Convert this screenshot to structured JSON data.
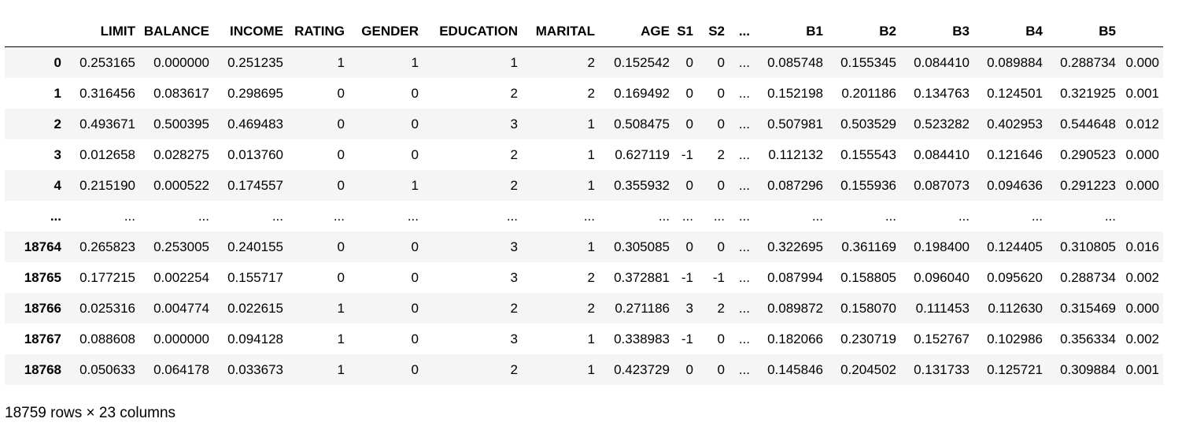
{
  "table": {
    "columns": [
      "",
      "LIMIT",
      "BALANCE",
      "INCOME",
      "RATING",
      "GENDER",
      "EDUCATION",
      "MARITAL",
      "AGE",
      "S1",
      "S2",
      "...",
      "B1",
      "B2",
      "B3",
      "B4",
      "B5",
      ""
    ],
    "rows": [
      [
        "0",
        "0.253165",
        "0.000000",
        "0.251235",
        "1",
        "1",
        "1",
        "2",
        "0.152542",
        "0",
        "0",
        "...",
        "0.085748",
        "0.155345",
        "0.084410",
        "0.089884",
        "0.288734",
        "0.000"
      ],
      [
        "1",
        "0.316456",
        "0.083617",
        "0.298695",
        "0",
        "0",
        "2",
        "2",
        "0.169492",
        "0",
        "0",
        "...",
        "0.152198",
        "0.201186",
        "0.134763",
        "0.124501",
        "0.321925",
        "0.001"
      ],
      [
        "2",
        "0.493671",
        "0.500395",
        "0.469483",
        "0",
        "0",
        "3",
        "1",
        "0.508475",
        "0",
        "0",
        "...",
        "0.507981",
        "0.503529",
        "0.523282",
        "0.402953",
        "0.544648",
        "0.012"
      ],
      [
        "3",
        "0.012658",
        "0.028275",
        "0.013760",
        "0",
        "0",
        "2",
        "1",
        "0.627119",
        "-1",
        "2",
        "...",
        "0.112132",
        "0.155543",
        "0.084410",
        "0.121646",
        "0.290523",
        "0.000"
      ],
      [
        "4",
        "0.215190",
        "0.000522",
        "0.174557",
        "0",
        "1",
        "2",
        "1",
        "0.355932",
        "0",
        "0",
        "...",
        "0.087296",
        "0.155936",
        "0.087073",
        "0.094636",
        "0.291223",
        "0.000"
      ],
      [
        "...",
        "...",
        "...",
        "...",
        "...",
        "...",
        "...",
        "...",
        "...",
        "...",
        "...",
        "...",
        "...",
        "...",
        "...",
        "...",
        "...",
        ""
      ],
      [
        "18764",
        "0.265823",
        "0.253005",
        "0.240155",
        "0",
        "0",
        "3",
        "1",
        "0.305085",
        "0",
        "0",
        "...",
        "0.322695",
        "0.361169",
        "0.198400",
        "0.124405",
        "0.310805",
        "0.016"
      ],
      [
        "18765",
        "0.177215",
        "0.002254",
        "0.155717",
        "0",
        "0",
        "3",
        "2",
        "0.372881",
        "-1",
        "-1",
        "...",
        "0.087994",
        "0.158805",
        "0.096040",
        "0.095620",
        "0.288734",
        "0.002"
      ],
      [
        "18766",
        "0.025316",
        "0.004774",
        "0.022615",
        "1",
        "0",
        "2",
        "2",
        "0.271186",
        "3",
        "2",
        "...",
        "0.089872",
        "0.158070",
        "0.111453",
        "0.112630",
        "0.315469",
        "0.000"
      ],
      [
        "18767",
        "0.088608",
        "0.000000",
        "0.094128",
        "1",
        "0",
        "3",
        "1",
        "0.338983",
        "-1",
        "0",
        "...",
        "0.182066",
        "0.230719",
        "0.152767",
        "0.102986",
        "0.356334",
        "0.002"
      ],
      [
        "18768",
        "0.050633",
        "0.064178",
        "0.033673",
        "1",
        "0",
        "2",
        "1",
        "0.423729",
        "0",
        "0",
        "...",
        "0.145846",
        "0.204502",
        "0.131733",
        "0.125721",
        "0.309884",
        "0.001"
      ]
    ]
  },
  "footer": {
    "shape_text": "18759 rows × 23 columns"
  }
}
